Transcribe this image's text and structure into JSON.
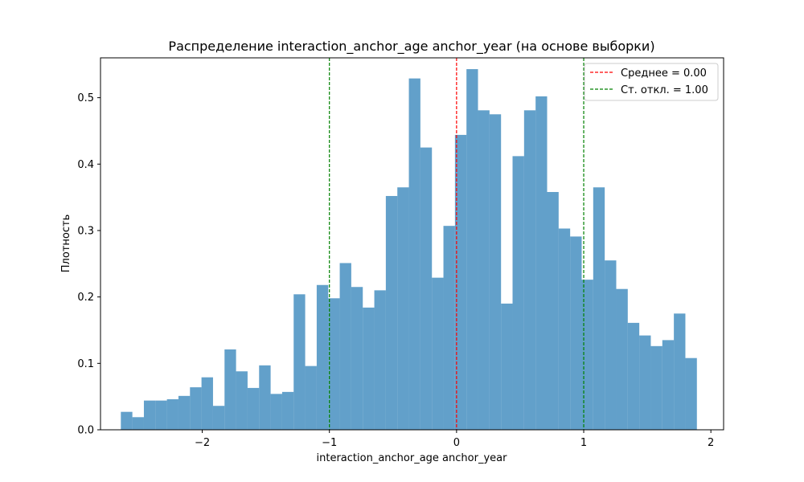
{
  "chart_data": {
    "type": "histogram",
    "title": "Распределение interaction_anchor_age anchor_year (на основе выборки)",
    "xlabel": "interaction_anchor_age anchor_year",
    "ylabel": "Плотность",
    "xlim": [
      -2.8,
      2.1
    ],
    "ylim": [
      0,
      0.56
    ],
    "xticks": [
      -2,
      -1,
      0,
      1,
      2
    ],
    "xtick_labels": [
      "−2",
      "−1",
      "0",
      "1",
      "2"
    ],
    "yticks": [
      0.0,
      0.1,
      0.2,
      0.3,
      0.4,
      0.5
    ],
    "ytick_labels": [
      "0.0",
      "0.1",
      "0.2",
      "0.3",
      "0.4",
      "0.5"
    ],
    "bin_start": -2.64,
    "bin_width": 0.0906,
    "values": [
      0.027,
      0.019,
      0.044,
      0.044,
      0.046,
      0.051,
      0.064,
      0.079,
      0.036,
      0.121,
      0.088,
      0.063,
      0.097,
      0.054,
      0.057,
      0.204,
      0.096,
      0.218,
      0.198,
      0.251,
      0.215,
      0.184,
      0.21,
      0.352,
      0.365,
      0.529,
      0.425,
      0.229,
      0.307,
      0.444,
      0.543,
      0.481,
      0.475,
      0.19,
      0.412,
      0.481,
      0.502,
      0.358,
      0.303,
      0.291,
      0.226,
      0.365,
      0.255,
      0.212,
      0.161,
      0.142,
      0.126,
      0.135,
      0.175,
      0.108
    ],
    "bar_color": "#1f77b4",
    "bar_opacity": 0.7,
    "grid": false,
    "vlines": [
      {
        "x": 0.0,
        "color": "#ff0000",
        "label": "Среднее = 0.00"
      },
      {
        "x": -1.0,
        "color": "#008000",
        "label": "Ст. откл. = 1.00"
      },
      {
        "x": 1.0,
        "color": "#008000",
        "label": ""
      }
    ],
    "legend": {
      "position": "top-right",
      "entries": [
        {
          "label": "Среднее = 0.00",
          "color": "#ff0000"
        },
        {
          "label": "Ст. откл. = 1.00",
          "color": "#008000"
        }
      ]
    }
  }
}
